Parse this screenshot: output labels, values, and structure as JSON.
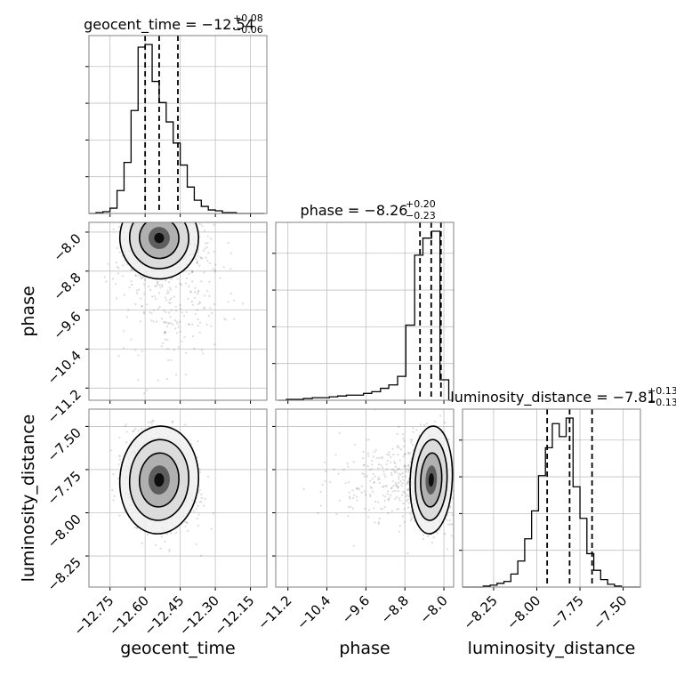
{
  "chart_data": {
    "type": "corner",
    "parameters": [
      "geocent_time",
      "phase",
      "luminosity_distance"
    ],
    "titles": [
      {
        "prefix": "geocent_time = ",
        "median": "−12.54",
        "plus": "+0.08",
        "minus": "−0.06"
      },
      {
        "prefix": "phase = ",
        "median": "−8.26",
        "plus": "+0.20",
        "minus": "−0.23"
      },
      {
        "prefix": "luminosity_distance = ",
        "median": "−7.81",
        "plus": "+0.13",
        "minus": "−0.13"
      }
    ],
    "axes": {
      "geocent_time": {
        "range": [
          -12.84,
          -12.08
        ],
        "ticks": [
          -12.75,
          -12.6,
          -12.45,
          -12.3,
          -12.15
        ],
        "tick_labels": [
          "−12.75",
          "−12.60",
          "−12.45",
          "−12.30",
          "−12.15"
        ]
      },
      "phase": {
        "range": [
          -11.45,
          -7.8
        ],
        "ticks": [
          -11.2,
          -10.4,
          -9.6,
          -8.8,
          -8.0
        ],
        "tick_labels": [
          "−11.2",
          "−10.4",
          "−9.6",
          "−8.8",
          "−8.0"
        ]
      },
      "luminosity_distance": {
        "range": [
          -8.43,
          -7.4
        ],
        "ticks": [
          -8.25,
          -8.0,
          -7.75,
          -7.5
        ],
        "tick_labels": [
          "−8.25",
          "−8.00",
          "−7.75",
          "−7.50"
        ]
      }
    },
    "quantile_lines": {
      "geocent_time": [
        -12.6,
        -12.54,
        -12.46
      ],
      "phase": [
        -8.49,
        -8.26,
        -8.06
      ],
      "luminosity_distance": [
        -7.94,
        -7.81,
        -7.68
      ]
    },
    "histograms": {
      "geocent_time": {
        "bin_edges": [
          -12.84,
          -12.81,
          -12.78,
          -12.75,
          -12.72,
          -12.69,
          -12.66,
          -12.63,
          -12.6,
          -12.57,
          -12.54,
          -12.51,
          -12.48,
          -12.45,
          -12.42,
          -12.39,
          -12.36,
          -12.33,
          -12.3,
          -12.27,
          -12.24,
          -12.21,
          -12.18,
          -12.15,
          -12.12,
          -12.09
        ],
        "counts": [
          0,
          1,
          2,
          6,
          26,
          58,
          117,
          189,
          192,
          150,
          126,
          104,
          80,
          55,
          30,
          15,
          8,
          4,
          3,
          1,
          1,
          0,
          0,
          0,
          0
        ]
      },
      "phase": {
        "bin_edges": [
          -11.4,
          -11.23,
          -11.05,
          -10.88,
          -10.7,
          -10.53,
          -10.35,
          -10.18,
          -10.0,
          -9.83,
          -9.65,
          -9.48,
          -9.3,
          -9.13,
          -8.95,
          -8.78,
          -8.6,
          -8.43,
          -8.25,
          -8.08,
          -7.9,
          -7.73,
          -7.55,
          -7.38,
          -7.2,
          -7.03
        ],
        "counts": [
          0,
          1,
          1,
          2,
          3,
          3,
          4,
          5,
          6,
          6,
          8,
          10,
          14,
          18,
          28,
          88,
          170,
          190,
          198,
          24,
          0,
          0,
          0,
          0,
          0
        ]
      },
      "luminosity_distance": {
        "bin_edges": [
          -8.43,
          -8.39,
          -8.35,
          -8.31,
          -8.27,
          -8.23,
          -8.19,
          -8.15,
          -8.11,
          -8.07,
          -8.03,
          -7.99,
          -7.95,
          -7.91,
          -7.87,
          -7.83,
          -7.79,
          -7.75,
          -7.71,
          -7.67,
          -7.63,
          -7.59,
          -7.55,
          -7.51,
          -7.47,
          -7.43,
          -7.39
        ],
        "counts": [
          0,
          0,
          0,
          1,
          2,
          4,
          6,
          14,
          28,
          52,
          82,
          120,
          150,
          176,
          162,
          182,
          108,
          74,
          36,
          18,
          8,
          3,
          1,
          0,
          0,
          0
        ]
      }
    },
    "joint": [
      {
        "x": "geocent_time",
        "y": "phase",
        "center": [
          -12.54,
          -8.12
        ],
        "sd": [
          0.07,
          0.35
        ],
        "corr": 0.25,
        "tail": "lower"
      },
      {
        "x": "geocent_time",
        "y": "luminosity_distance",
        "center": [
          -12.54,
          -7.81
        ],
        "sd": [
          0.07,
          0.13
        ],
        "corr": -0.15
      },
      {
        "x": "phase",
        "y": "luminosity_distance",
        "center": [
          -8.26,
          -7.81
        ],
        "sd": [
          0.18,
          0.13
        ],
        "corr": -0.1,
        "tail": "left"
      }
    ],
    "grid": true
  }
}
